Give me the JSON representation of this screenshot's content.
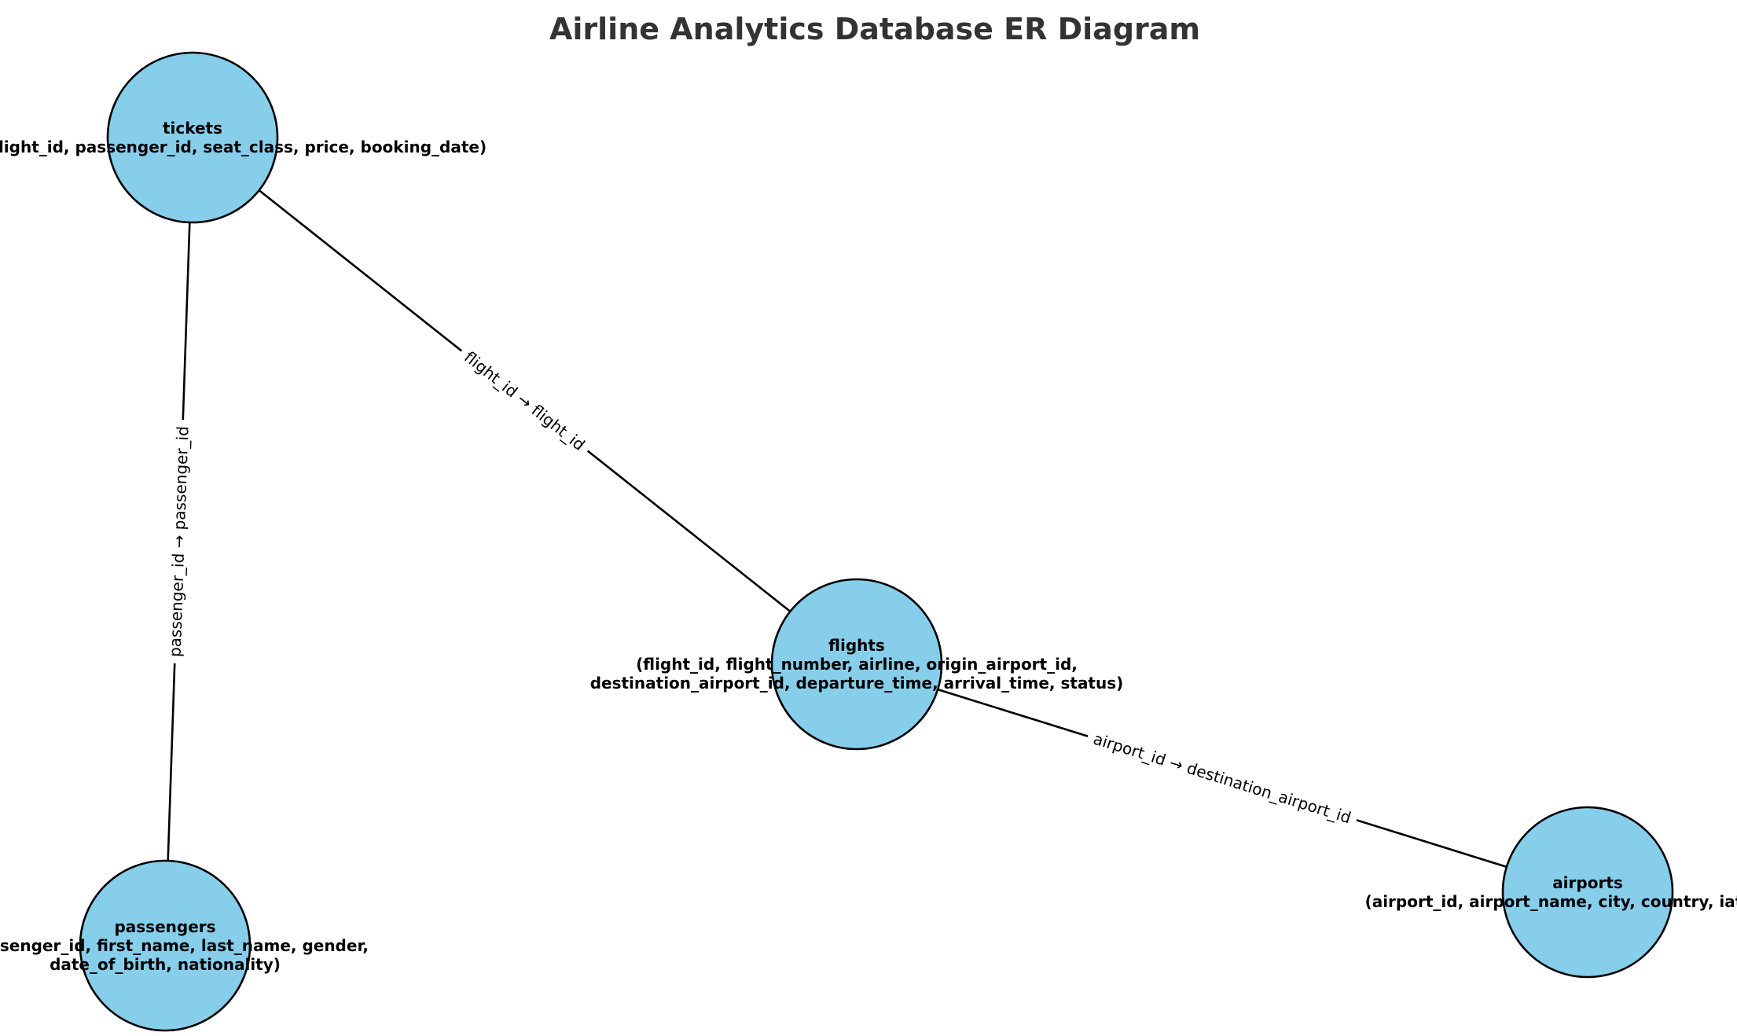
{
  "title": "Airline Analytics Database ER Diagram",
  "style": {
    "node_fill": "#87CEEB",
    "node_stroke": "#000000",
    "title_color": "#333333"
  },
  "entities": [
    {
      "id": "tickets",
      "name": "tickets",
      "attribute_lines": [
        "(ticket_id, flight_id, passenger_id, seat_class, price, booking_date)"
      ]
    },
    {
      "id": "flights",
      "name": "flights",
      "attribute_lines": [
        "(flight_id, flight_number, airline, origin_airport_id,",
        "destination_airport_id, departure_time, arrival_time, status)"
      ]
    },
    {
      "id": "passengers",
      "name": "passengers",
      "attribute_lines": [
        "(passenger_id, first_name, last_name, gender,",
        "date_of_birth, nationality)"
      ]
    },
    {
      "id": "airports",
      "name": "airports",
      "attribute_lines": [
        "(airport_id, airport_name, city, country, iata_code)"
      ]
    }
  ],
  "relationships": [
    {
      "from": "tickets",
      "to": "flights",
      "label": "flight_id → flight_id"
    },
    {
      "from": "tickets",
      "to": "passengers",
      "label": "passenger_id → passenger_id"
    },
    {
      "from": "flights",
      "to": "airports",
      "label": "airport_id → destination_airport_id"
    }
  ]
}
